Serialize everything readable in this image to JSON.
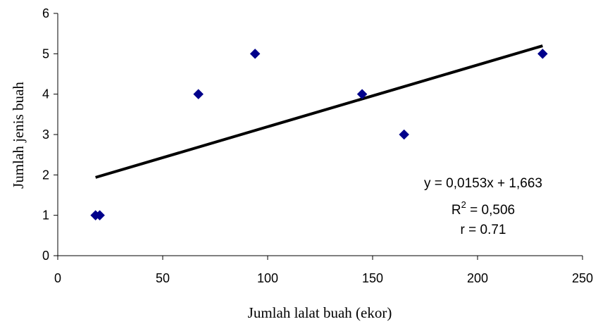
{
  "chart_data": {
    "type": "scatter",
    "xlabel": "Jumlah lalat buah (ekor)",
    "ylabel": "Jumlah jenis buah",
    "xlim": [
      0,
      250
    ],
    "ylim": [
      0,
      6
    ],
    "x_ticks": [
      0,
      50,
      100,
      150,
      200,
      250
    ],
    "y_ticks": [
      0,
      1,
      2,
      3,
      4,
      5,
      6
    ],
    "x_tick_labels": [
      "0",
      "50",
      "100",
      "150",
      "200",
      "250"
    ],
    "y_tick_labels": [
      "0",
      "1",
      "2",
      "3",
      "4",
      "5",
      "6"
    ],
    "grid": false,
    "marker": "diamond",
    "marker_color": "#00008B",
    "points": [
      {
        "x": 18,
        "y": 1
      },
      {
        "x": 20,
        "y": 1
      },
      {
        "x": 67,
        "y": 4
      },
      {
        "x": 94,
        "y": 5
      },
      {
        "x": 145,
        "y": 4
      },
      {
        "x": 165,
        "y": 3
      },
      {
        "x": 231,
        "y": 5
      }
    ],
    "trendline": {
      "type": "linear",
      "slope": 0.0153,
      "intercept": 1.663,
      "x_range": [
        18,
        231
      ],
      "color": "#000000"
    },
    "annotations": {
      "equation": "y = 0,0153x + 1,663",
      "r2_label": "R",
      "r2_sup": "2",
      "r2_value": " = 0,506",
      "r_text": "r = 0.71"
    }
  }
}
